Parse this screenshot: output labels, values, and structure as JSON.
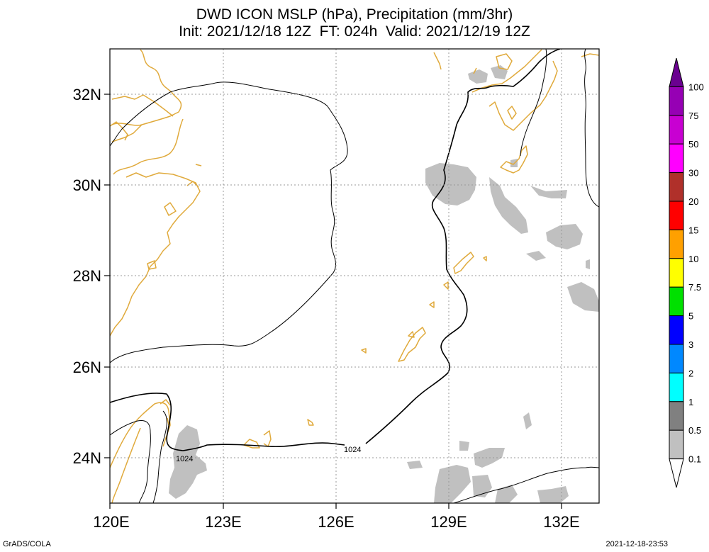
{
  "title": {
    "line1": "DWD ICON MSLP (hPa), Precipitation (mm/3hr)",
    "line2": "Init: 2021/12/18 12Z  FT: 024h  Valid: 2021/12/19 12Z"
  },
  "axes": {
    "lat_labels": [
      "32N",
      "30N",
      "28N",
      "26N",
      "24N"
    ],
    "lon_labels": [
      "120E",
      "123E",
      "126E",
      "129E",
      "132E"
    ]
  },
  "contour_labels": [
    "1024",
    "1024"
  ],
  "colorbar": {
    "levels": [
      "100",
      "75",
      "50",
      "30",
      "20",
      "15",
      "10",
      "7.5",
      "5",
      "3",
      "2",
      "1",
      "0.5",
      "0.1"
    ],
    "colors": [
      "#6a0090",
      "#9600b4",
      "#c800d2",
      "#ff00ff",
      "#b0302a",
      "#ff0000",
      "#ffa000",
      "#ffff00",
      "#00e000",
      "#0000ff",
      "#0088ff",
      "#00ffff",
      "#808080",
      "#c0c0c0",
      "#ffffff"
    ]
  },
  "colors": {
    "coastline": "#e0aa3c",
    "isobar": "#000000",
    "precip_light": "#c0c0c0",
    "grid": "#999999"
  },
  "footer": {
    "left": "GrADS/COLA",
    "right": "2021-12-18-23:53"
  }
}
